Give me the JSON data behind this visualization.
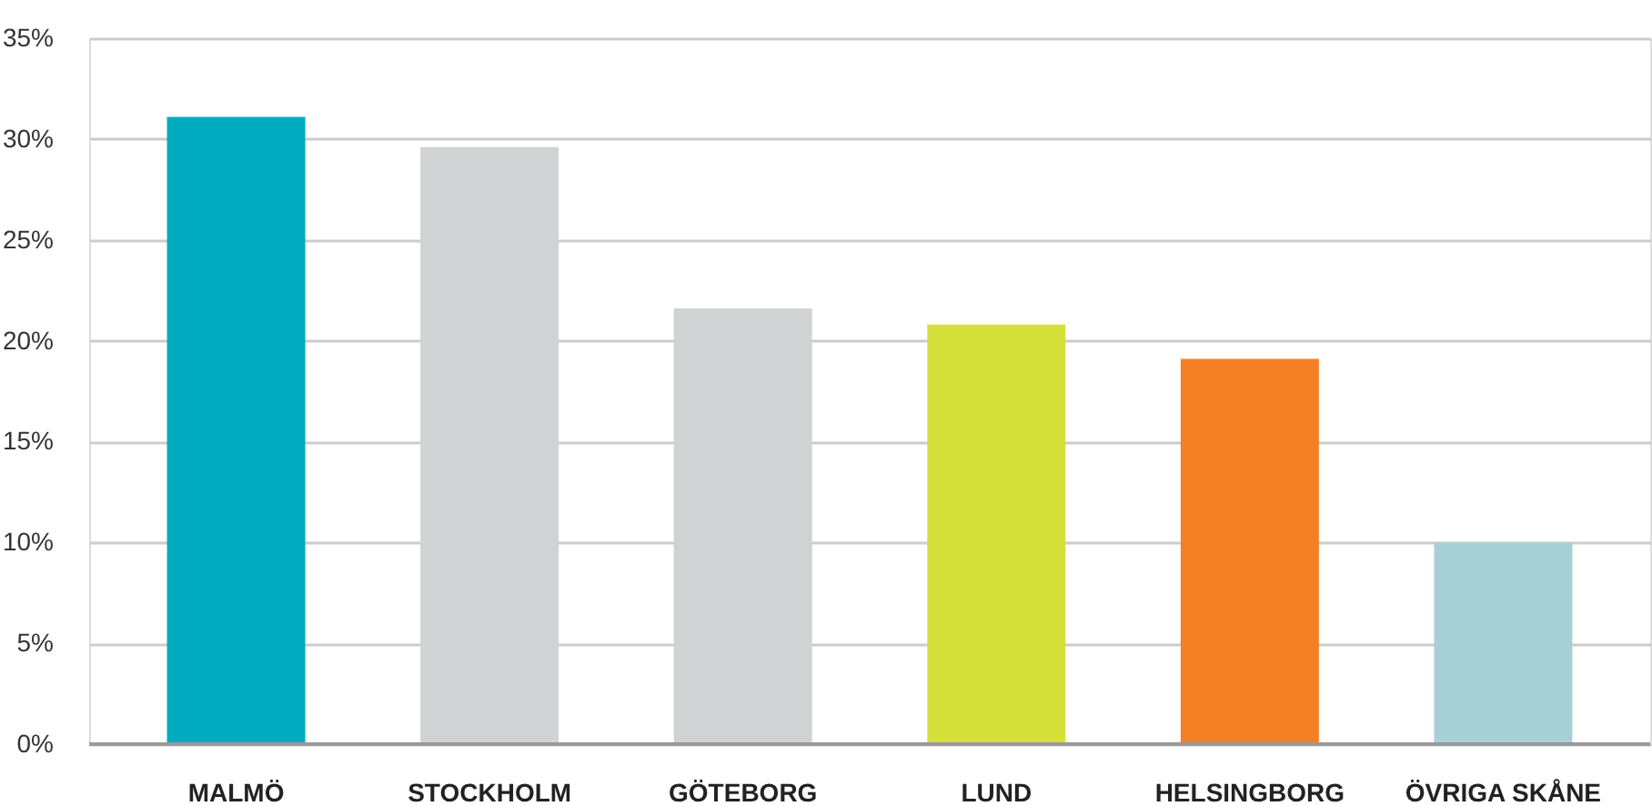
{
  "chart_data": {
    "type": "bar",
    "categories": [
      "MALMÖ",
      "STOCKHOLM",
      "GÖTEBORG",
      "LUND",
      "HELSINGBORG",
      "ÖVRIGA SKÅNE"
    ],
    "values": [
      31.1,
      29.6,
      21.6,
      20.8,
      19.1,
      10.0
    ],
    "colors": [
      "#00abbf",
      "#d1d2d4",
      "#d1d2d4",
      "#d5e03b",
      "#f48026",
      "#a7d0d6"
    ],
    "ylim": [
      0,
      35
    ],
    "yticks": [
      {
        "value": 0,
        "label": "0%"
      },
      {
        "value": 5,
        "label": "5%"
      },
      {
        "value": 10,
        "label": "10%"
      },
      {
        "value": 15,
        "label": "15%"
      },
      {
        "value": 20,
        "label": "20%"
      },
      {
        "value": 25,
        "label": "25%"
      },
      {
        "value": 30,
        "label": "30%"
      },
      {
        "value": 35,
        "label": "35%"
      }
    ],
    "grid": "y"
  }
}
